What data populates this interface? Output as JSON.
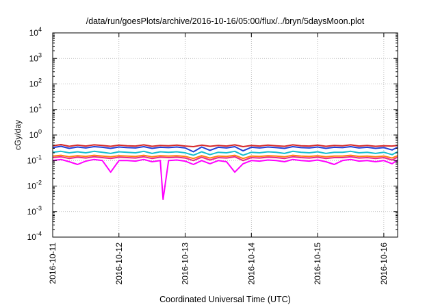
{
  "chart_data": {
    "type": "line",
    "title": "/data/run/goesPlots/archive/2016-10-16/05:00/flux/../bryn/5daysMoon.plot",
    "xlabel": "Coordinated Universal Time (UTC)",
    "ylabel": "cGy/day",
    "yscale": "log",
    "ylim": [
      0.0001,
      10000
    ],
    "y_ticks": [
      {
        "value": 0.0001,
        "base": "10",
        "exp": "-4"
      },
      {
        "value": 0.001,
        "base": "10",
        "exp": "-3"
      },
      {
        "value": 0.01,
        "base": "10",
        "exp": "-2"
      },
      {
        "value": 0.1,
        "base": "10",
        "exp": "-1"
      },
      {
        "value": 1,
        "base": "10",
        "exp": "0"
      },
      {
        "value": 10,
        "base": "10",
        "exp": "1"
      },
      {
        "value": 100,
        "base": "10",
        "exp": "2"
      },
      {
        "value": 1000,
        "base": "10",
        "exp": "3"
      },
      {
        "value": 10000,
        "base": "10",
        "exp": "4"
      }
    ],
    "xlim": [
      "2016-10-11T00:00",
      "2016-10-16T05:00"
    ],
    "x_ticks": [
      "2016-10-11",
      "2016-10-12",
      "2016-10-13",
      "2016-10-14",
      "2016-10-15",
      "2016-10-16"
    ],
    "grid": true,
    "legend": "none",
    "series": [
      {
        "color": "#d62728",
        "x": [
          "2016-10-11T00:00",
          "2016-10-11T03:00",
          "2016-10-11T06:00",
          "2016-10-11T09:00",
          "2016-10-11T12:00",
          "2016-10-11T15:00",
          "2016-10-11T18:00",
          "2016-10-11T21:00",
          "2016-10-12T00:00",
          "2016-10-12T03:00",
          "2016-10-12T06:00",
          "2016-10-12T09:00",
          "2016-10-12T12:00",
          "2016-10-12T15:00",
          "2016-10-12T18:00",
          "2016-10-12T21:00",
          "2016-10-13T00:00",
          "2016-10-13T03:00",
          "2016-10-13T06:00",
          "2016-10-13T09:00",
          "2016-10-13T12:00",
          "2016-10-13T15:00",
          "2016-10-13T18:00",
          "2016-10-13T21:00",
          "2016-10-14T00:00",
          "2016-10-14T03:00",
          "2016-10-14T06:00",
          "2016-10-14T09:00",
          "2016-10-14T12:00",
          "2016-10-14T15:00",
          "2016-10-14T18:00",
          "2016-10-14T21:00",
          "2016-10-15T00:00",
          "2016-10-15T03:00",
          "2016-10-15T06:00",
          "2016-10-15T09:00",
          "2016-10-15T12:00",
          "2016-10-15T15:00",
          "2016-10-15T18:00",
          "2016-10-15T21:00",
          "2016-10-16T00:00",
          "2016-10-16T03:00",
          "2016-10-16T05:00"
        ],
        "values": [
          0.38,
          0.42,
          0.36,
          0.4,
          0.37,
          0.41,
          0.39,
          0.36,
          0.4,
          0.38,
          0.37,
          0.41,
          0.36,
          0.39,
          0.38,
          0.4,
          0.37,
          0.35,
          0.4,
          0.36,
          0.39,
          0.37,
          0.41,
          0.35,
          0.39,
          0.37,
          0.4,
          0.38,
          0.36,
          0.41,
          0.38,
          0.37,
          0.4,
          0.36,
          0.39,
          0.38,
          0.41,
          0.37,
          0.39,
          0.36,
          0.38,
          0.37,
          0.39
        ]
      },
      {
        "color": "#1f3fd6",
        "x": [
          "2016-10-11T00:00",
          "2016-10-11T03:00",
          "2016-10-11T06:00",
          "2016-10-11T09:00",
          "2016-10-11T12:00",
          "2016-10-11T15:00",
          "2016-10-11T18:00",
          "2016-10-11T21:00",
          "2016-10-12T00:00",
          "2016-10-12T03:00",
          "2016-10-12T06:00",
          "2016-10-12T09:00",
          "2016-10-12T12:00",
          "2016-10-12T15:00",
          "2016-10-12T18:00",
          "2016-10-12T21:00",
          "2016-10-13T00:00",
          "2016-10-13T03:00",
          "2016-10-13T06:00",
          "2016-10-13T09:00",
          "2016-10-13T12:00",
          "2016-10-13T15:00",
          "2016-10-13T18:00",
          "2016-10-13T21:00",
          "2016-10-14T00:00",
          "2016-10-14T03:00",
          "2016-10-14T06:00",
          "2016-10-14T09:00",
          "2016-10-14T12:00",
          "2016-10-14T15:00",
          "2016-10-14T18:00",
          "2016-10-14T21:00",
          "2016-10-15T00:00",
          "2016-10-15T03:00",
          "2016-10-15T06:00",
          "2016-10-15T09:00",
          "2016-10-15T12:00",
          "2016-10-15T15:00",
          "2016-10-15T18:00",
          "2016-10-15T21:00",
          "2016-10-16T00:00",
          "2016-10-16T03:00",
          "2016-10-16T05:00"
        ],
        "values": [
          0.32,
          0.36,
          0.3,
          0.34,
          0.31,
          0.35,
          0.33,
          0.3,
          0.34,
          0.32,
          0.31,
          0.35,
          0.3,
          0.33,
          0.32,
          0.34,
          0.31,
          0.22,
          0.34,
          0.25,
          0.33,
          0.31,
          0.35,
          0.24,
          0.33,
          0.31,
          0.34,
          0.32,
          0.3,
          0.35,
          0.32,
          0.31,
          0.34,
          0.3,
          0.33,
          0.32,
          0.35,
          0.31,
          0.33,
          0.3,
          0.32,
          0.26,
          0.33
        ]
      },
      {
        "color": "#17becf",
        "x": [
          "2016-10-11T00:00",
          "2016-10-11T03:00",
          "2016-10-11T06:00",
          "2016-10-11T09:00",
          "2016-10-11T12:00",
          "2016-10-11T15:00",
          "2016-10-11T18:00",
          "2016-10-11T21:00",
          "2016-10-12T00:00",
          "2016-10-12T03:00",
          "2016-10-12T06:00",
          "2016-10-12T09:00",
          "2016-10-12T12:00",
          "2016-10-12T15:00",
          "2016-10-12T18:00",
          "2016-10-12T21:00",
          "2016-10-13T00:00",
          "2016-10-13T03:00",
          "2016-10-13T06:00",
          "2016-10-13T09:00",
          "2016-10-13T12:00",
          "2016-10-13T15:00",
          "2016-10-13T18:00",
          "2016-10-13T21:00",
          "2016-10-14T00:00",
          "2016-10-14T03:00",
          "2016-10-14T06:00",
          "2016-10-14T09:00",
          "2016-10-14T12:00",
          "2016-10-14T15:00",
          "2016-10-14T18:00",
          "2016-10-14T21:00",
          "2016-10-15T00:00",
          "2016-10-15T03:00",
          "2016-10-15T06:00",
          "2016-10-15T09:00",
          "2016-10-15T12:00",
          "2016-10-15T15:00",
          "2016-10-15T18:00",
          "2016-10-15T21:00",
          "2016-10-16T00:00",
          "2016-10-16T03:00",
          "2016-10-16T05:00"
        ],
        "values": [
          0.21,
          0.23,
          0.2,
          0.22,
          0.2,
          0.23,
          0.21,
          0.19,
          0.22,
          0.21,
          0.2,
          0.23,
          0.19,
          0.22,
          0.21,
          0.22,
          0.2,
          0.16,
          0.22,
          0.17,
          0.21,
          0.2,
          0.23,
          0.16,
          0.21,
          0.2,
          0.22,
          0.21,
          0.19,
          0.23,
          0.21,
          0.2,
          0.22,
          0.19,
          0.21,
          0.21,
          0.23,
          0.2,
          0.21,
          0.19,
          0.21,
          0.17,
          0.22
        ]
      },
      {
        "color": "#ff7f0e",
        "x": [
          "2016-10-11T00:00",
          "2016-10-11T03:00",
          "2016-10-11T06:00",
          "2016-10-11T09:00",
          "2016-10-11T12:00",
          "2016-10-11T15:00",
          "2016-10-11T18:00",
          "2016-10-11T21:00",
          "2016-10-12T00:00",
          "2016-10-12T03:00",
          "2016-10-12T06:00",
          "2016-10-12T09:00",
          "2016-10-12T12:00",
          "2016-10-12T15:00",
          "2016-10-12T18:00",
          "2016-10-12T21:00",
          "2016-10-13T00:00",
          "2016-10-13T03:00",
          "2016-10-13T06:00",
          "2016-10-13T09:00",
          "2016-10-13T12:00",
          "2016-10-13T15:00",
          "2016-10-13T18:00",
          "2016-10-13T21:00",
          "2016-10-14T00:00",
          "2016-10-14T03:00",
          "2016-10-14T06:00",
          "2016-10-14T09:00",
          "2016-10-14T12:00",
          "2016-10-14T15:00",
          "2016-10-14T18:00",
          "2016-10-14T21:00",
          "2016-10-15T00:00",
          "2016-10-15T03:00",
          "2016-10-15T06:00",
          "2016-10-15T09:00",
          "2016-10-15T12:00",
          "2016-10-15T15:00",
          "2016-10-15T18:00",
          "2016-10-15T21:00",
          "2016-10-16T00:00",
          "2016-10-16T03:00",
          "2016-10-16T05:00"
        ],
        "values": [
          0.15,
          0.16,
          0.14,
          0.155,
          0.145,
          0.16,
          0.15,
          0.14,
          0.155,
          0.15,
          0.145,
          0.16,
          0.14,
          0.155,
          0.15,
          0.155,
          0.145,
          0.12,
          0.155,
          0.125,
          0.15,
          0.145,
          0.16,
          0.12,
          0.15,
          0.145,
          0.155,
          0.15,
          0.14,
          0.16,
          0.15,
          0.145,
          0.155,
          0.14,
          0.15,
          0.15,
          0.16,
          0.145,
          0.15,
          0.14,
          0.15,
          0.125,
          0.155
        ]
      },
      {
        "color": "#e7298a",
        "x": [
          "2016-10-11T00:00",
          "2016-10-11T03:00",
          "2016-10-11T06:00",
          "2016-10-11T09:00",
          "2016-10-11T12:00",
          "2016-10-11T15:00",
          "2016-10-11T18:00",
          "2016-10-11T21:00",
          "2016-10-12T00:00",
          "2016-10-12T03:00",
          "2016-10-12T06:00",
          "2016-10-12T09:00",
          "2016-10-12T12:00",
          "2016-10-12T15:00",
          "2016-10-12T18:00",
          "2016-10-12T21:00",
          "2016-10-13T00:00",
          "2016-10-13T03:00",
          "2016-10-13T06:00",
          "2016-10-13T09:00",
          "2016-10-13T12:00",
          "2016-10-13T15:00",
          "2016-10-13T18:00",
          "2016-10-13T21:00",
          "2016-10-14T00:00",
          "2016-10-14T03:00",
          "2016-10-14T06:00",
          "2016-10-14T09:00",
          "2016-10-14T12:00",
          "2016-10-14T15:00",
          "2016-10-14T18:00",
          "2016-10-14T21:00",
          "2016-10-15T00:00",
          "2016-10-15T03:00",
          "2016-10-15T06:00",
          "2016-10-15T09:00",
          "2016-10-15T12:00",
          "2016-10-15T15:00",
          "2016-10-15T18:00",
          "2016-10-15T21:00",
          "2016-10-16T00:00",
          "2016-10-16T03:00",
          "2016-10-16T05:00"
        ],
        "values": [
          0.13,
          0.14,
          0.12,
          0.135,
          0.125,
          0.14,
          0.13,
          0.12,
          0.135,
          0.13,
          0.125,
          0.14,
          0.12,
          0.135,
          0.13,
          0.135,
          0.125,
          0.1,
          0.135,
          0.105,
          0.13,
          0.125,
          0.14,
          0.1,
          0.13,
          0.125,
          0.135,
          0.13,
          0.12,
          0.14,
          0.13,
          0.125,
          0.135,
          0.12,
          0.13,
          0.13,
          0.14,
          0.125,
          0.13,
          0.12,
          0.13,
          0.105,
          0.135
        ]
      },
      {
        "color": "#ff00ff",
        "x": [
          "2016-10-11T00:00",
          "2016-10-11T03:00",
          "2016-10-11T06:00",
          "2016-10-11T09:00",
          "2016-10-11T12:00",
          "2016-10-11T15:00",
          "2016-10-11T18:00",
          "2016-10-11T21:00",
          "2016-10-12T00:00",
          "2016-10-12T03:00",
          "2016-10-12T06:00",
          "2016-10-12T09:00",
          "2016-10-12T12:00",
          "2016-10-12T15:00",
          "2016-10-12T16:00",
          "2016-10-12T18:00",
          "2016-10-12T21:00",
          "2016-10-13T00:00",
          "2016-10-13T03:00",
          "2016-10-13T06:00",
          "2016-10-13T09:00",
          "2016-10-13T12:00",
          "2016-10-13T15:00",
          "2016-10-13T18:00",
          "2016-10-13T21:00",
          "2016-10-14T00:00",
          "2016-10-14T03:00",
          "2016-10-14T06:00",
          "2016-10-14T09:00",
          "2016-10-14T12:00",
          "2016-10-14T15:00",
          "2016-10-14T18:00",
          "2016-10-14T21:00",
          "2016-10-15T00:00",
          "2016-10-15T03:00",
          "2016-10-15T06:00",
          "2016-10-15T09:00",
          "2016-10-15T12:00",
          "2016-10-15T15:00",
          "2016-10-15T18:00",
          "2016-10-15T21:00",
          "2016-10-16T00:00",
          "2016-10-16T03:00",
          "2016-10-16T05:00"
        ],
        "values": [
          0.1,
          0.11,
          0.09,
          0.07,
          0.095,
          0.11,
          0.1,
          0.035,
          0.1,
          0.1,
          0.095,
          0.11,
          0.09,
          0.1,
          0.003,
          0.1,
          0.105,
          0.095,
          0.07,
          0.1,
          0.075,
          0.1,
          0.09,
          0.035,
          0.075,
          0.1,
          0.095,
          0.105,
          0.1,
          0.09,
          0.11,
          0.1,
          0.095,
          0.105,
          0.09,
          0.07,
          0.1,
          0.11,
          0.095,
          0.1,
          0.09,
          0.1,
          0.075,
          0.105
        ]
      }
    ]
  }
}
